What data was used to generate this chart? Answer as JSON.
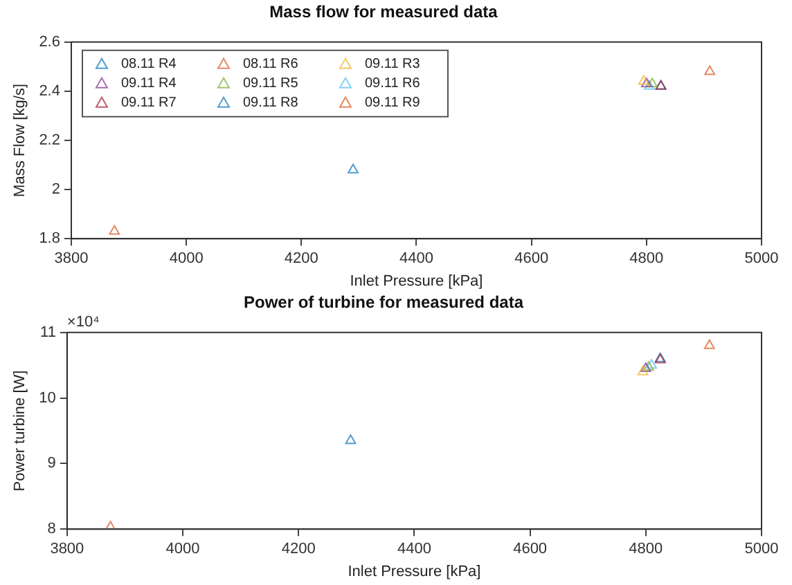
{
  "chart_data": [
    {
      "type": "scatter",
      "title": "Mass flow for measured data",
      "xlabel": "Inlet Pressure [kPa]",
      "ylabel": "Mass Flow [kg/s]",
      "xlim": [
        3800,
        5000
      ],
      "xticks": [
        3800,
        4000,
        4200,
        4400,
        4600,
        4800,
        5000
      ],
      "ylim": [
        1.8,
        2.6
      ],
      "yticks": [
        1.8,
        2,
        2.2,
        2.4,
        2.6
      ],
      "grid": false,
      "legend": "top left",
      "marker": "triangle",
      "series": [
        {
          "name": "08.11 R4",
          "color": "#0072bd",
          "x": [
            4290
          ],
          "values": [
            2.08
          ]
        },
        {
          "name": "08.11 R6",
          "color": "#d95319",
          "x": [
            3875
          ],
          "values": [
            1.83
          ]
        },
        {
          "name": "09.11 R3",
          "color": "#edb120",
          "x": [
            4795
          ],
          "values": [
            2.44
          ]
        },
        {
          "name": "09.11 R4",
          "color": "#7e2f8e",
          "x": [
            4800
          ],
          "values": [
            2.43
          ]
        },
        {
          "name": "09.11 R5",
          "color": "#77ac30",
          "x": [
            4810
          ],
          "values": [
            2.43
          ]
        },
        {
          "name": "09.11 R6",
          "color": "#4dbeee",
          "x": [
            4805
          ],
          "values": [
            2.42
          ]
        },
        {
          "name": "09.11 R7",
          "color": "#a2142f",
          "x": [
            4825
          ],
          "values": [
            2.42
          ]
        },
        {
          "name": "09.11 R8",
          "color": "#0072bd",
          "x": [
            4825
          ],
          "values": [
            2.42
          ]
        },
        {
          "name": "09.11 R9",
          "color": "#d95319",
          "x": [
            4910
          ],
          "values": [
            2.48
          ]
        }
      ]
    },
    {
      "type": "scatter",
      "title": "Power of turbine for measured data",
      "xlabel": "Inlet Pressure [kPa]",
      "ylabel": "Power turbine [W]",
      "annotations": [
        "×10⁴"
      ],
      "xlim": [
        3800,
        5000
      ],
      "xticks": [
        3800,
        4000,
        4200,
        4400,
        4600,
        4800,
        5000
      ],
      "ylim": [
        8,
        11
      ],
      "yticks": [
        8,
        9,
        10,
        11
      ],
      "grid": false,
      "legend": false,
      "marker": "triangle",
      "series": [
        {
          "color": "#0072bd",
          "x": [
            4290
          ],
          "values": [
            9.35
          ]
        },
        {
          "color": "#d95319",
          "x": [
            3875
          ],
          "values": [
            8.03
          ]
        },
        {
          "color": "#edb120",
          "x": [
            4795
          ],
          "values": [
            10.4
          ]
        },
        {
          "color": "#7e2f8e",
          "x": [
            4800
          ],
          "values": [
            10.45
          ]
        },
        {
          "color": "#77ac30",
          "x": [
            4805
          ],
          "values": [
            10.47
          ]
        },
        {
          "color": "#4dbeee",
          "x": [
            4810
          ],
          "values": [
            10.5
          ]
        },
        {
          "color": "#a2142f",
          "x": [
            4825
          ],
          "values": [
            10.58
          ]
        },
        {
          "color": "#0072bd",
          "x": [
            4825
          ],
          "values": [
            10.6
          ]
        },
        {
          "color": "#d95319",
          "x": [
            4910
          ],
          "values": [
            10.8
          ]
        }
      ]
    }
  ]
}
